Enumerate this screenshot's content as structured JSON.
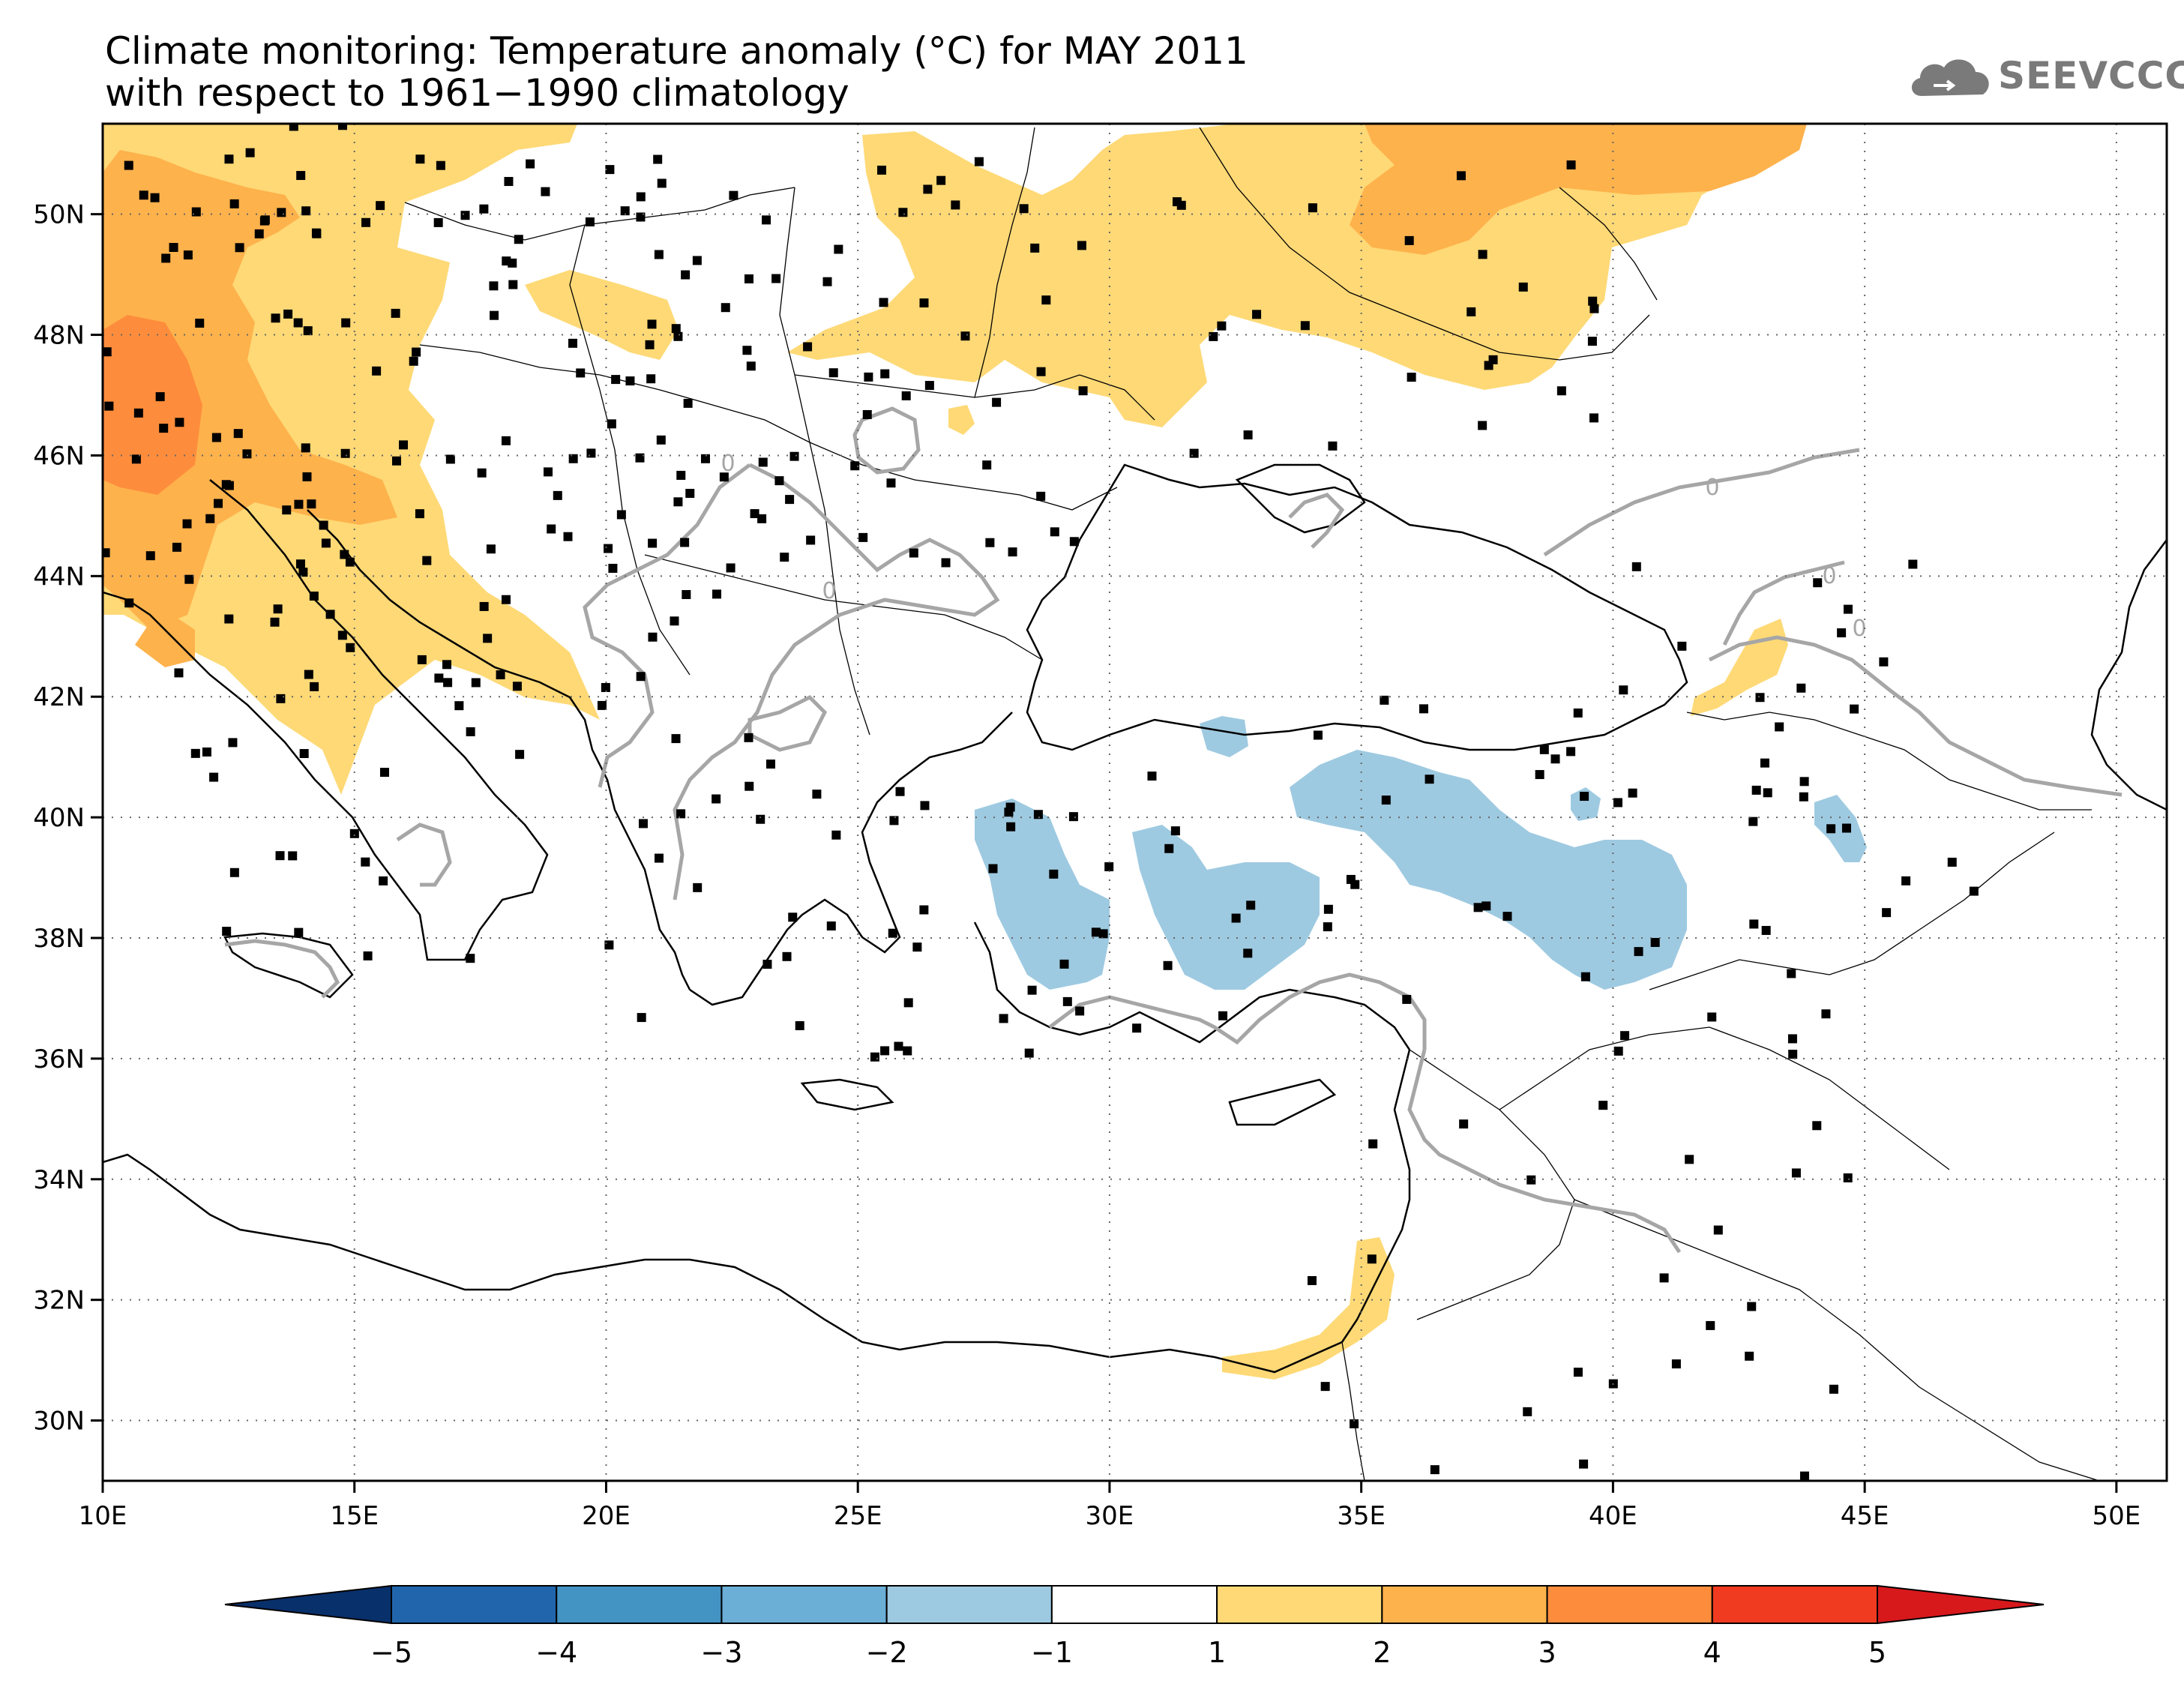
{
  "title": {
    "line1": "Climate monitoring: Temperature anomaly (°C) for MAY 2011",
    "line2": "with respect to 1961−1990 climatology"
  },
  "logo": {
    "text": "SEEVCCC",
    "icon": "cloud-icon"
  },
  "map": {
    "lon_range": [
      10,
      51
    ],
    "lat_range": [
      29,
      51.5
    ],
    "lon_ticks": [
      {
        "v": 10,
        "label": "10E"
      },
      {
        "v": 15,
        "label": "15E"
      },
      {
        "v": 20,
        "label": "20E"
      },
      {
        "v": 25,
        "label": "25E"
      },
      {
        "v": 30,
        "label": "30E"
      },
      {
        "v": 35,
        "label": "35E"
      },
      {
        "v": 40,
        "label": "40E"
      },
      {
        "v": 45,
        "label": "45E"
      },
      {
        "v": 50,
        "label": "50E"
      }
    ],
    "lat_ticks": [
      {
        "v": 50,
        "label": "50N"
      },
      {
        "v": 48,
        "label": "48N"
      },
      {
        "v": 46,
        "label": "46N"
      },
      {
        "v": 44,
        "label": "44N"
      },
      {
        "v": 42,
        "label": "42N"
      },
      {
        "v": 40,
        "label": "40N"
      },
      {
        "v": 38,
        "label": "38N"
      },
      {
        "v": 36,
        "label": "36N"
      },
      {
        "v": 34,
        "label": "34N"
      },
      {
        "v": 32,
        "label": "32N"
      },
      {
        "v": 30,
        "label": "30N"
      }
    ],
    "zero_contour_label": "0",
    "colors": {
      "coast": "#000000",
      "contour": "#a6a6a6",
      "grid": "#666666",
      "station": "#000000"
    }
  },
  "colorbar": {
    "ticks": [
      "−5",
      "−4",
      "−3",
      "−2",
      "−1",
      "1",
      "2",
      "3",
      "4",
      "5"
    ],
    "below_color": "#08306b",
    "above_color": "#d7191c",
    "colors": [
      "#2166ac",
      "#4393c3",
      "#6baed6",
      "#9ecae1",
      "#ffffff",
      "#fed976",
      "#feb24c",
      "#fd8d3c",
      "#f03b20"
    ]
  }
}
